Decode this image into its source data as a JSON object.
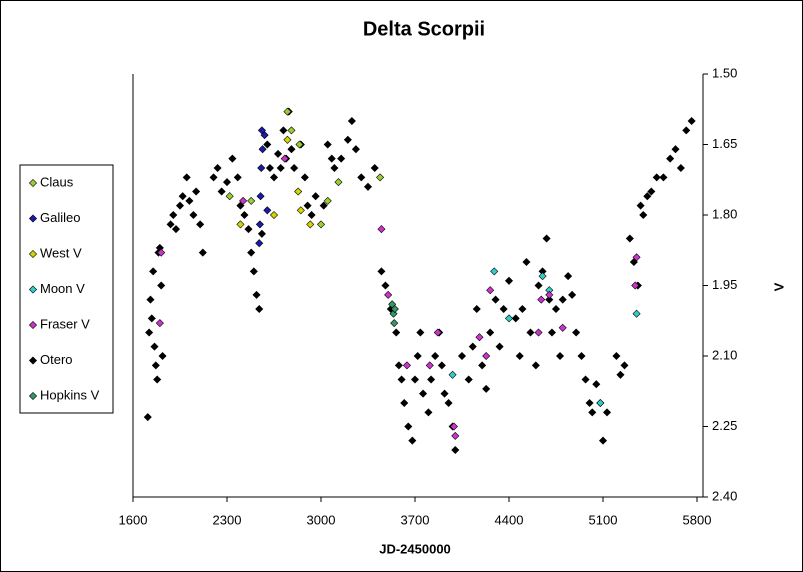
{
  "chart_data": {
    "type": "scatter",
    "title": "Delta Scorpii",
    "x_label": "JD-2450000",
    "y_label": "V",
    "xlim": [
      1600,
      5800
    ],
    "xticks": [
      1600,
      2300,
      3000,
      3700,
      4400,
      5100,
      5800
    ],
    "ylim": [
      1.5,
      2.4
    ],
    "y_reversed": true,
    "yticks": [
      {
        "value": 1.5,
        "label": "1.50"
      },
      1.65,
      {
        "value": 1.8,
        "label": "1.80"
      },
      1.95,
      {
        "value": 2.1,
        "label": "2.10"
      },
      2.25,
      {
        "value": 2.4,
        "label": "2.40"
      }
    ],
    "legend": "left",
    "series": [
      {
        "name": "Claus",
        "color": "#9acd32",
        "x": [
          2750,
          2780,
          2840,
          3000,
          3050,
          3130,
          3440,
          2320,
          2480
        ],
        "values": [
          1.58,
          1.62,
          1.65,
          1.82,
          1.77,
          1.73,
          1.72,
          1.76,
          1.77
        ]
      },
      {
        "name": "Galileo",
        "color": "#1a1aa8",
        "x": [
          2560,
          2565,
          2555,
          2550,
          2545,
          2540,
          2600,
          2580
        ],
        "values": [
          1.62,
          1.66,
          1.7,
          1.76,
          1.82,
          1.86,
          1.79,
          1.63
        ]
      },
      {
        "name": "West V",
        "color": "#d4d400",
        "x": [
          2400,
          2650,
          2750,
          2830,
          2850,
          2920
        ],
        "values": [
          1.82,
          1.8,
          1.64,
          1.75,
          1.79,
          1.82
        ]
      },
      {
        "name": "Moon V",
        "color": "#33cccc",
        "x": [
          4290,
          4400,
          4650,
          4700,
          3980,
          5350,
          5080
        ],
        "values": [
          1.92,
          2.02,
          1.93,
          1.96,
          2.14,
          2.01,
          2.2
        ]
      },
      {
        "name": "Fraser V",
        "color": "#cc33cc",
        "x": [
          1810,
          1800,
          2420,
          2730,
          3450,
          3500,
          3640,
          3810,
          3870,
          3990,
          4000,
          4180,
          4230,
          4260,
          4620,
          4640,
          4700,
          4800,
          5350,
          5340
        ],
        "values": [
          1.88,
          2.03,
          1.77,
          1.68,
          1.83,
          1.97,
          2.12,
          2.12,
          2.05,
          2.25,
          2.27,
          2.06,
          2.1,
          1.96,
          2.05,
          1.98,
          1.97,
          2.04,
          1.89,
          1.95
        ]
      },
      {
        "name": "Otero",
        "color": "#000000",
        "x": [
          1710,
          1720,
          1730,
          1740,
          1750,
          1760,
          1770,
          1780,
          1790,
          1800,
          1810,
          1820,
          1880,
          1900,
          1920,
          1950,
          1970,
          2000,
          2020,
          2050,
          2070,
          2100,
          2120,
          2200,
          2230,
          2260,
          2300,
          2340,
          2380,
          2400,
          2430,
          2460,
          2480,
          2500,
          2520,
          2540,
          2560,
          2600,
          2620,
          2650,
          2680,
          2700,
          2720,
          2740,
          2760,
          2780,
          2800,
          2850,
          2880,
          2900,
          2930,
          2960,
          3020,
          3050,
          3080,
          3100,
          3150,
          3200,
          3230,
          3260,
          3300,
          3350,
          3400,
          3450,
          3480,
          3520,
          3560,
          3580,
          3600,
          3620,
          3650,
          3680,
          3700,
          3720,
          3740,
          3760,
          3800,
          3820,
          3850,
          3880,
          3900,
          3920,
          3950,
          3980,
          4000,
          4050,
          4100,
          4130,
          4160,
          4200,
          4230,
          4260,
          4300,
          4330,
          4360,
          4400,
          4450,
          4480,
          4500,
          4530,
          4560,
          4600,
          4620,
          4650,
          4680,
          4700,
          4720,
          4750,
          4780,
          4800,
          4840,
          4870,
          4900,
          4940,
          4970,
          5000,
          5020,
          5050,
          5080,
          5100,
          5130,
          5200,
          5230,
          5260,
          5300,
          5330,
          5360,
          5380,
          5400,
          5430,
          5460,
          5500,
          5550,
          5600,
          5640,
          5680,
          5720,
          5760
        ],
        "values": [
          2.23,
          2.05,
          1.98,
          2.02,
          1.92,
          2.08,
          2.12,
          2.15,
          1.88,
          1.87,
          1.95,
          2.1,
          1.82,
          1.8,
          1.83,
          1.78,
          1.76,
          1.72,
          1.77,
          1.8,
          1.75,
          1.82,
          1.88,
          1.72,
          1.7,
          1.75,
          1.73,
          1.68,
          1.72,
          1.78,
          1.8,
          1.83,
          1.88,
          1.92,
          1.97,
          2.0,
          1.84,
          1.65,
          1.7,
          1.72,
          1.67,
          1.7,
          1.62,
          1.68,
          1.58,
          1.66,
          1.7,
          1.65,
          1.72,
          1.78,
          1.8,
          1.76,
          1.78,
          1.65,
          1.68,
          1.7,
          1.68,
          1.64,
          1.6,
          1.66,
          1.72,
          1.74,
          1.7,
          1.92,
          1.95,
          2.0,
          2.05,
          2.12,
          2.15,
          2.2,
          2.25,
          2.28,
          2.15,
          2.1,
          2.05,
          2.18,
          2.22,
          2.15,
          2.1,
          2.05,
          2.12,
          2.18,
          2.2,
          2.25,
          2.3,
          2.1,
          2.15,
          2.08,
          2.0,
          2.12,
          2.17,
          2.05,
          1.98,
          2.08,
          2.0,
          1.94,
          2.02,
          2.1,
          2.0,
          1.9,
          2.05,
          2.12,
          1.95,
          1.92,
          1.85,
          1.98,
          2.05,
          2.0,
          2.1,
          1.98,
          1.93,
          1.97,
          2.05,
          2.1,
          2.15,
          2.2,
          2.22,
          2.16,
          2.2,
          2.28,
          2.22,
          2.1,
          2.14,
          2.12,
          1.85,
          1.9,
          1.95,
          1.78,
          1.8,
          1.76,
          1.75,
          1.72,
          1.72,
          1.68,
          1.66,
          1.7,
          1.62,
          1.6
        ]
      },
      {
        "name": "Hopkins V",
        "color": "#339966",
        "x": [
          3530,
          3540,
          3545,
          3550
        ],
        "values": [
          1.99,
          2.01,
          2.03,
          2.0
        ]
      }
    ]
  }
}
